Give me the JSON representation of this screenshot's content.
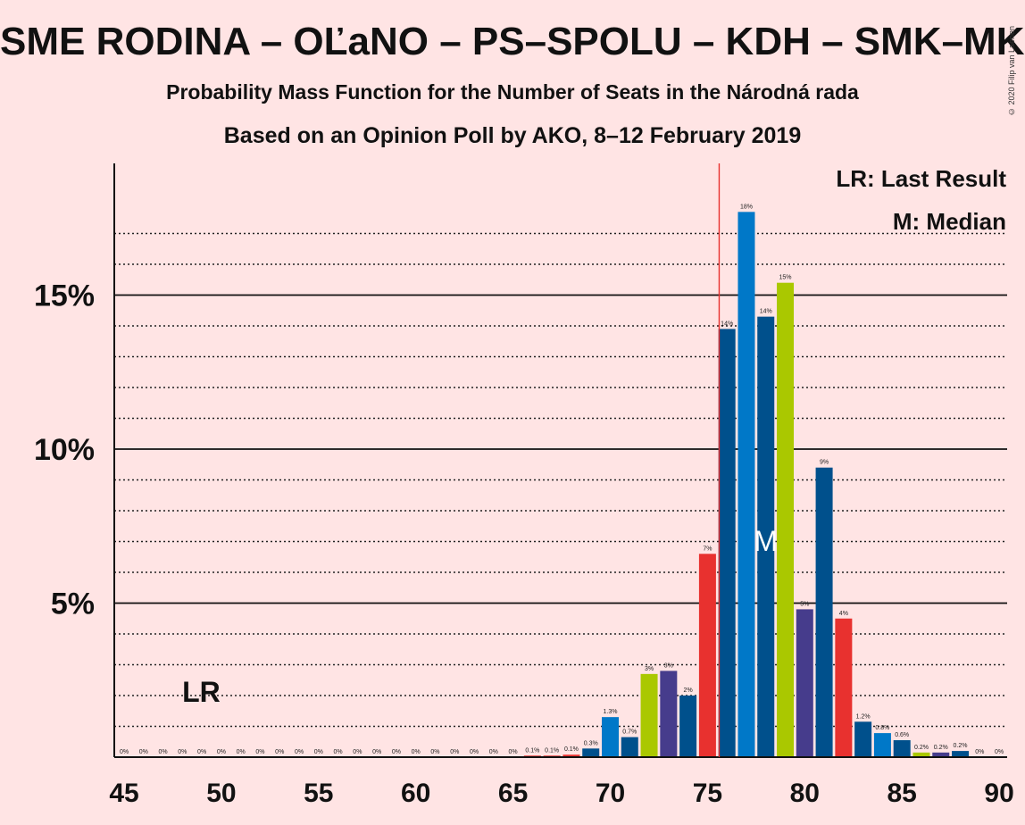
{
  "title": "SME RODINA – OĽaNO – PS–SPOLU – KDH – SMK–MKP",
  "subtitle": "Probability Mass Function for the Number of Seats in the Národná rada",
  "subtitle2": "Based on an Opinion Poll by AKO, 8–12 February 2019",
  "copyright": "© 2020 Filip van Laenen",
  "legend": {
    "lr": "LR: Last Result",
    "m": "M: Median"
  },
  "markers": {
    "lr_label": "LR",
    "median_label": "M"
  },
  "colors": {
    "background": "#ffe4e4",
    "red": "#e8312f",
    "blue": "#0078c8",
    "darkblue": "#00508c",
    "yellowgreen": "#aac800",
    "purple": "#463c8c",
    "lastresult_line": "#e8312f"
  },
  "chart_data": {
    "type": "bar",
    "xlabel": "",
    "ylabel": "",
    "xlim": [
      45,
      90
    ],
    "ylim": [
      0,
      19
    ],
    "x_ticks": [
      "45",
      "50",
      "55",
      "60",
      "65",
      "70",
      "75",
      "80",
      "85",
      "90"
    ],
    "y_ticks": [
      {
        "value": 5,
        "label": "5%"
      },
      {
        "value": 10,
        "label": "10%"
      },
      {
        "value": 15,
        "label": "15%"
      }
    ],
    "minor_gridlines": [
      1,
      2,
      3,
      4,
      6,
      7,
      8,
      9,
      11,
      12,
      13,
      14,
      16,
      17
    ],
    "last_result": 49,
    "median": 78,
    "threshold_line": 75.6,
    "bars": [
      {
        "x": 45,
        "value": 0,
        "label": "0%",
        "color": "red"
      },
      {
        "x": 46,
        "value": 0,
        "label": "0%",
        "color": "red"
      },
      {
        "x": 47,
        "value": 0,
        "label": "0%",
        "color": "red"
      },
      {
        "x": 48,
        "value": 0,
        "label": "0%",
        "color": "red"
      },
      {
        "x": 49,
        "value": 0,
        "label": "0%",
        "color": "red"
      },
      {
        "x": 50,
        "value": 0,
        "label": "0%",
        "color": "red"
      },
      {
        "x": 51,
        "value": 0,
        "label": "0%",
        "color": "red"
      },
      {
        "x": 52,
        "value": 0,
        "label": "0%",
        "color": "red"
      },
      {
        "x": 53,
        "value": 0,
        "label": "0%",
        "color": "red"
      },
      {
        "x": 54,
        "value": 0,
        "label": "0%",
        "color": "red"
      },
      {
        "x": 55,
        "value": 0,
        "label": "0%",
        "color": "red"
      },
      {
        "x": 56,
        "value": 0,
        "label": "0%",
        "color": "red"
      },
      {
        "x": 57,
        "value": 0,
        "label": "0%",
        "color": "red"
      },
      {
        "x": 58,
        "value": 0,
        "label": "0%",
        "color": "red"
      },
      {
        "x": 59,
        "value": 0,
        "label": "0%",
        "color": "red"
      },
      {
        "x": 60,
        "value": 0,
        "label": "0%",
        "color": "red"
      },
      {
        "x": 61,
        "value": 0,
        "label": "0%",
        "color": "red"
      },
      {
        "x": 62,
        "value": 0,
        "label": "0%",
        "color": "red"
      },
      {
        "x": 63,
        "value": 0,
        "label": "0%",
        "color": "red"
      },
      {
        "x": 64,
        "value": 0,
        "label": "0%",
        "color": "red"
      },
      {
        "x": 65,
        "value": 0,
        "label": "0%",
        "color": "red"
      },
      {
        "x": 66,
        "value": 0.05,
        "label": "0.1%",
        "color": "red"
      },
      {
        "x": 67,
        "value": 0.05,
        "label": "0.1%",
        "color": "red"
      },
      {
        "x": 68,
        "value": 0.08,
        "label": "0.1%",
        "color": "red"
      },
      {
        "x": 69,
        "value": 0.28,
        "label": "0.3%",
        "color": "darkblue"
      },
      {
        "x": 70,
        "value": 1.3,
        "label": "1.3%",
        "color": "blue"
      },
      {
        "x": 71,
        "value": 0.65,
        "label": "0.7%",
        "color": "darkblue"
      },
      {
        "x": 72,
        "value": 2.7,
        "label": "3%",
        "color": "yellowgreen"
      },
      {
        "x": 73,
        "value": 2.8,
        "label": "3%",
        "color": "purple"
      },
      {
        "x": 74,
        "value": 2.0,
        "label": "2%",
        "color": "darkblue"
      },
      {
        "x": 75,
        "value": 6.6,
        "label": "7%",
        "color": "red"
      },
      {
        "x": 76,
        "value": 13.9,
        "label": "14%",
        "color": "darkblue"
      },
      {
        "x": 77,
        "value": 17.7,
        "label": "18%",
        "color": "blue"
      },
      {
        "x": 78,
        "value": 14.3,
        "label": "14%",
        "color": "darkblue"
      },
      {
        "x": 79,
        "value": 15.4,
        "label": "15%",
        "color": "yellowgreen"
      },
      {
        "x": 80,
        "value": 4.8,
        "label": "5%",
        "color": "purple"
      },
      {
        "x": 81,
        "value": 9.4,
        "label": "9%",
        "color": "darkblue"
      },
      {
        "x": 82,
        "value": 4.5,
        "label": "4%",
        "color": "red"
      },
      {
        "x": 83,
        "value": 1.15,
        "label": "1.2%",
        "color": "darkblue"
      },
      {
        "x": 84,
        "value": 0.78,
        "label": "0.8%",
        "color": "blue"
      },
      {
        "x": 85,
        "value": 0.55,
        "label": "0.6%",
        "color": "darkblue"
      },
      {
        "x": 86,
        "value": 0.15,
        "label": "0.2%",
        "color": "yellowgreen"
      },
      {
        "x": 87,
        "value": 0.15,
        "label": "0.2%",
        "color": "purple"
      },
      {
        "x": 88,
        "value": 0.2,
        "label": "0.2%",
        "color": "darkblue"
      },
      {
        "x": 89,
        "value": 0,
        "label": "0%",
        "color": "red"
      },
      {
        "x": 90,
        "value": 0,
        "label": "0%",
        "color": "darkblue"
      }
    ]
  }
}
